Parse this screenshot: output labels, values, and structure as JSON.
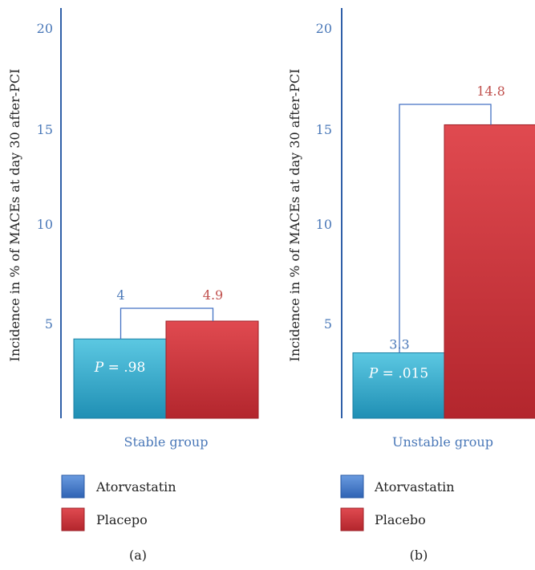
{
  "colors": {
    "axis": "#2f5fa8",
    "tick_text": "#4a78b8",
    "bracket": "#4472c4",
    "atorvastatin": "#2aa8c9",
    "placebo": "#c8333a",
    "placebo_label": "#c0504d",
    "atorvastatin_label": "#4a78b8"
  },
  "chart_data": [
    {
      "type": "bar",
      "panel_label": "(a)",
      "ylabel": "Incidence in % of MACEs at day 30 after-PCI",
      "ylim": [
        0,
        20.5
      ],
      "yticks": [
        "20",
        "15",
        "10",
        "5"
      ],
      "category_label": "Stable group",
      "series": [
        {
          "name": "Atorvastatin",
          "value": 4,
          "value_label": "4",
          "p_value_prefix": "P",
          "p_value": " = .98"
        },
        {
          "name": "Placepo",
          "value": 4.9,
          "value_label": "4.9"
        }
      ],
      "legend": [
        {
          "label": "Atorvastatin",
          "icon": "blue-square"
        },
        {
          "label": "Placepo",
          "icon": "red-square"
        }
      ]
    },
    {
      "type": "bar",
      "panel_label": "(b)",
      "ylabel": "Incidence in % of MACEs at day 30 after-PCI",
      "ylim": [
        0,
        20.5
      ],
      "yticks": [
        "20",
        "15",
        "10",
        "5"
      ],
      "category_label": "Unstable group",
      "series": [
        {
          "name": "Atorvastatin",
          "value": 3.3,
          "value_label": "3.3",
          "p_value_prefix": "P",
          "p_value": " = .015"
        },
        {
          "name": "Placebo",
          "value": 14.8,
          "value_label": "14.8"
        }
      ],
      "legend": [
        {
          "label": "Atorvastatin",
          "icon": "blue-square"
        },
        {
          "label": "Placebo",
          "icon": "red-square"
        }
      ]
    }
  ]
}
